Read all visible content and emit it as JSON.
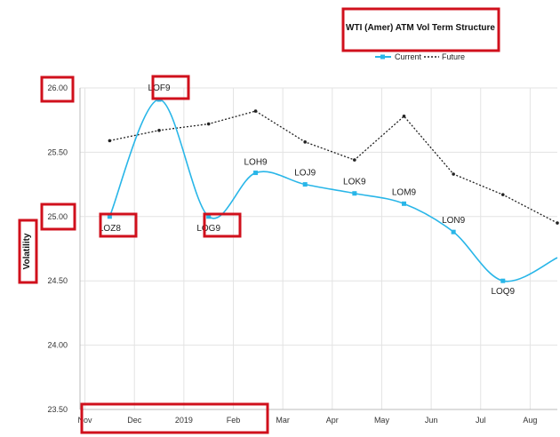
{
  "chart_data": {
    "type": "line",
    "title": "WTI (Amer) ATM Vol Term Structure",
    "ylabel": "Volatility",
    "xlabel": "",
    "ylim": [
      23.5,
      26.0
    ],
    "yticks": [
      "23.50",
      "24.00",
      "24.50",
      "25.00",
      "25.50",
      "26.00"
    ],
    "ytick_values": [
      23.5,
      24.0,
      24.5,
      25.0,
      25.5,
      26.0
    ],
    "xticks": [
      "Nov",
      "Dec",
      "2019",
      "Feb",
      "Mar",
      "Apr",
      "May",
      "Jun",
      "Jul",
      "Aug"
    ],
    "xtick_months": [
      0,
      1,
      2,
      3,
      4,
      5,
      6,
      7,
      8,
      9
    ],
    "xlim_months": [
      -0.1,
      9.55
    ],
    "grid": true,
    "legend": {
      "position": "top-center",
      "entries": [
        "Current",
        "Future"
      ]
    },
    "series": [
      {
        "name": "Current",
        "color": "#29b6e8",
        "style": "solid",
        "points": [
          {
            "label": "LOZ8",
            "month": 0.5,
            "value": 25.0
          },
          {
            "label": "LOF9",
            "month": 1.5,
            "value": 25.91
          },
          {
            "label": "LOG9",
            "month": 2.5,
            "value": 25.0
          },
          {
            "label": "LOH9",
            "month": 3.45,
            "value": 25.34
          },
          {
            "label": "LOJ9",
            "month": 4.45,
            "value": 25.25
          },
          {
            "label": "LOK9",
            "month": 5.45,
            "value": 25.18
          },
          {
            "label": "LOM9",
            "month": 6.45,
            "value": 25.1
          },
          {
            "label": "LON9",
            "month": 7.45,
            "value": 24.88
          },
          {
            "label": "LOQ9",
            "month": 8.45,
            "value": 24.5
          },
          {
            "label": "",
            "month": 9.55,
            "value": 24.68
          }
        ]
      },
      {
        "name": "Future",
        "color": "#222222",
        "style": "dotted",
        "points": [
          {
            "month": 0.5,
            "value": 25.59
          },
          {
            "month": 1.5,
            "value": 25.67
          },
          {
            "month": 2.5,
            "value": 25.72
          },
          {
            "month": 3.45,
            "value": 25.82
          },
          {
            "month": 4.45,
            "value": 25.58
          },
          {
            "month": 5.45,
            "value": 25.44
          },
          {
            "month": 6.45,
            "value": 25.78
          },
          {
            "month": 7.45,
            "value": 25.33
          },
          {
            "month": 8.45,
            "value": 25.17
          },
          {
            "month": 9.55,
            "value": 24.95
          }
        ]
      }
    ],
    "annotation_color": "#d0101c"
  }
}
